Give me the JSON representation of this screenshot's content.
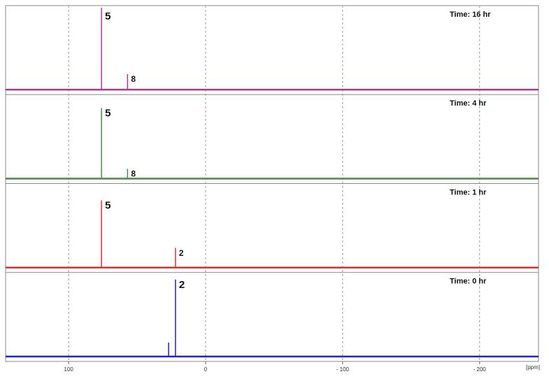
{
  "chart_data": {
    "type": "spectrum",
    "xlabel": "[ppm]",
    "xlim": [
      146,
      -243
    ],
    "xticks": [
      100,
      0,
      {
        "value": -100,
        "label": "- 100"
      },
      {
        "value": -200,
        "label": "- 200"
      }
    ],
    "grid": true,
    "panels": [
      {
        "title": "Time: 16 hr",
        "color": "#b0379b",
        "x": [
          76,
          57
        ],
        "values": [
          100,
          19
        ],
        "labels": [
          "5",
          "8"
        ]
      },
      {
        "title": "Time: 4 hr",
        "color": "#4a8a4a",
        "x": [
          76,
          57
        ],
        "values": [
          86,
          12
        ],
        "labels": [
          "5",
          "8"
        ]
      },
      {
        "title": "Time: 1 hr",
        "color": "#e03030",
        "x": [
          76,
          22
        ],
        "values": [
          82,
          24
        ],
        "labels": [
          "5",
          "2"
        ]
      },
      {
        "title": "Time: 0 hr",
        "color": "#2020d0",
        "x": [
          22,
          27
        ],
        "values": [
          94,
          17
        ],
        "labels": [
          "2",
          null
        ]
      }
    ]
  }
}
